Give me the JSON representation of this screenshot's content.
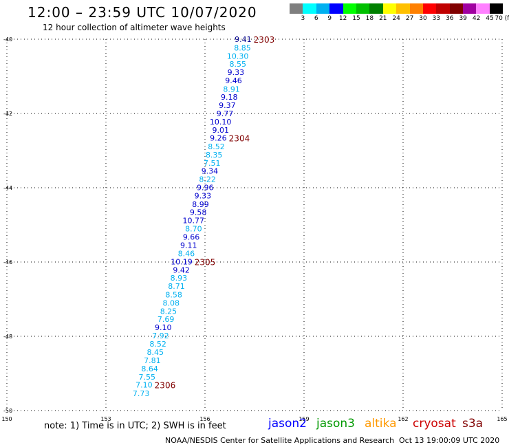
{
  "header": {
    "title": "12:00 – 23:59 UTC 10/07/2020",
    "subtitle": "12 hour collection of altimeter wave heights"
  },
  "color_scale": {
    "labels": [
      "3",
      "6",
      "9",
      "12",
      "15",
      "18",
      "21",
      "24",
      "27",
      "30",
      "33",
      "36",
      "39",
      "42",
      "45",
      "70 (ft)"
    ],
    "colors": [
      "#7f7f7f",
      "#00ffff",
      "#00b0f0",
      "#0000ff",
      "#00ff00",
      "#00c000",
      "#008000",
      "#ffff00",
      "#ffc000",
      "#ff8000",
      "#ff0000",
      "#c00000",
      "#800000",
      "#a000a0",
      "#ff80ff",
      "#000000"
    ]
  },
  "footer": {
    "note": "note: 1) Time is in UTC; 2) SWH is in feet",
    "satellites": [
      {
        "name": "jason2",
        "color": "#0000ff"
      },
      {
        "name": "jason3",
        "color": "#009900"
      },
      {
        "name": "altika",
        "color": "#ff9900"
      },
      {
        "name": "cryosat",
        "color": "#cc0000"
      },
      {
        "name": "s3a",
        "color": "#800000"
      }
    ],
    "credit": "NOAA/NESDIS Center for Satellite Applications and Research",
    "timestamp": "Oct 13 19:00:09 UTC 2020"
  },
  "chart_data": {
    "type": "scatter",
    "xlim": [
      150,
      165
    ],
    "ylim": [
      -50,
      -40
    ],
    "x_ticks": [
      150,
      153,
      156,
      159,
      162,
      165
    ],
    "y_ticks": [
      -40,
      -42,
      -44,
      -46,
      -48,
      -50
    ],
    "grid": true,
    "points": [
      {
        "lon": 157.41,
        "lat": -40.0,
        "v": "9.41",
        "c": "#00008b"
      },
      {
        "lon": 157.39,
        "lat": -40.23,
        "v": "8.85",
        "c": "#00b0f0"
      },
      {
        "lon": 157.32,
        "lat": -40.45,
        "v": "10.30",
        "c": "#00b0f0"
      },
      {
        "lon": 157.25,
        "lat": -40.67,
        "v": "8.55",
        "c": "#00b0f0"
      },
      {
        "lon": 157.19,
        "lat": -40.89,
        "v": "9.33",
        "c": "#0000cd"
      },
      {
        "lon": 157.12,
        "lat": -41.11,
        "v": "9.46",
        "c": "#0000cd"
      },
      {
        "lon": 157.06,
        "lat": -41.34,
        "v": "8.91",
        "c": "#00b0f0"
      },
      {
        "lon": 156.99,
        "lat": -41.56,
        "v": "9.18",
        "c": "#0000cd"
      },
      {
        "lon": 156.93,
        "lat": -41.78,
        "v": "9.37",
        "c": "#0000cd"
      },
      {
        "lon": 156.86,
        "lat": -42.0,
        "v": "9.77",
        "c": "#0000cd"
      },
      {
        "lon": 156.8,
        "lat": -42.22,
        "v": "10.10",
        "c": "#0000cd"
      },
      {
        "lon": 156.73,
        "lat": -42.44,
        "v": "9.01",
        "c": "#0000cd"
      },
      {
        "lon": 156.66,
        "lat": -42.66,
        "v": "9.26",
        "c": "#0000cd"
      },
      {
        "lon": 156.6,
        "lat": -42.89,
        "v": "8.52",
        "c": "#00b0f0"
      },
      {
        "lon": 156.53,
        "lat": -43.11,
        "v": "8.35",
        "c": "#00b0f0"
      },
      {
        "lon": 156.47,
        "lat": -43.33,
        "v": "7.51",
        "c": "#00b0f0"
      },
      {
        "lon": 156.4,
        "lat": -43.55,
        "v": "9.34",
        "c": "#0000cd"
      },
      {
        "lon": 156.33,
        "lat": -43.77,
        "v": "8.22",
        "c": "#00b0f0"
      },
      {
        "lon": 156.26,
        "lat": -43.99,
        "v": "9.96",
        "c": "#0000cd"
      },
      {
        "lon": 156.19,
        "lat": -44.21,
        "v": "9.33",
        "c": "#0000cd"
      },
      {
        "lon": 156.12,
        "lat": -44.44,
        "v": "8.99",
        "c": "#0000cd"
      },
      {
        "lon": 156.05,
        "lat": -44.66,
        "v": "9.58",
        "c": "#0000cd"
      },
      {
        "lon": 155.98,
        "lat": -44.88,
        "v": "10.77",
        "c": "#0000cd"
      },
      {
        "lon": 155.91,
        "lat": -45.1,
        "v": "8.70",
        "c": "#00b0f0"
      },
      {
        "lon": 155.84,
        "lat": -45.32,
        "v": "9.66",
        "c": "#0000cd"
      },
      {
        "lon": 155.76,
        "lat": -45.55,
        "v": "9.11",
        "c": "#0000cd"
      },
      {
        "lon": 155.69,
        "lat": -45.77,
        "v": "8.46",
        "c": "#00b0f0"
      },
      {
        "lon": 155.62,
        "lat": -45.99,
        "v": "10.19",
        "c": "#0000cd"
      },
      {
        "lon": 155.54,
        "lat": -46.21,
        "v": "9.42",
        "c": "#0000cd"
      },
      {
        "lon": 155.46,
        "lat": -46.43,
        "v": "8.93",
        "c": "#00b0f0"
      },
      {
        "lon": 155.39,
        "lat": -46.65,
        "v": "8.71",
        "c": "#00b0f0"
      },
      {
        "lon": 155.31,
        "lat": -46.88,
        "v": "8.58",
        "c": "#00b0f0"
      },
      {
        "lon": 155.23,
        "lat": -47.1,
        "v": "8.08",
        "c": "#00b0f0"
      },
      {
        "lon": 155.15,
        "lat": -47.32,
        "v": "8.25",
        "c": "#00b0f0"
      },
      {
        "lon": 155.07,
        "lat": -47.54,
        "v": "7.69",
        "c": "#00b0f0"
      },
      {
        "lon": 154.99,
        "lat": -47.76,
        "v": "9.10",
        "c": "#0000cd"
      },
      {
        "lon": 154.91,
        "lat": -47.98,
        "v": "7.92",
        "c": "#00b0f0"
      },
      {
        "lon": 154.83,
        "lat": -48.2,
        "v": "8.52",
        "c": "#00b0f0"
      },
      {
        "lon": 154.75,
        "lat": -48.43,
        "v": "8.45",
        "c": "#00b0f0"
      },
      {
        "lon": 154.66,
        "lat": -48.65,
        "v": "7.81",
        "c": "#00b0f0"
      },
      {
        "lon": 154.58,
        "lat": -48.87,
        "v": "8.64",
        "c": "#00b0f0"
      },
      {
        "lon": 154.5,
        "lat": -49.09,
        "v": "7.55",
        "c": "#00b0f0"
      },
      {
        "lon": 154.41,
        "lat": -49.31,
        "v": "7.10",
        "c": "#00b0f0"
      },
      {
        "lon": 154.32,
        "lat": -49.54,
        "v": "7.73",
        "c": "#00b0f0"
      }
    ],
    "time_labels": [
      {
        "lon": 157.41,
        "lat": -40.0,
        "text": "2303",
        "c": "#800000"
      },
      {
        "lon": 156.66,
        "lat": -42.66,
        "text": "2304",
        "c": "#800000"
      },
      {
        "lon": 155.62,
        "lat": -45.99,
        "text": "2305",
        "c": "#800000"
      },
      {
        "lon": 154.41,
        "lat": -49.31,
        "text": "2306",
        "c": "#800000"
      }
    ]
  }
}
